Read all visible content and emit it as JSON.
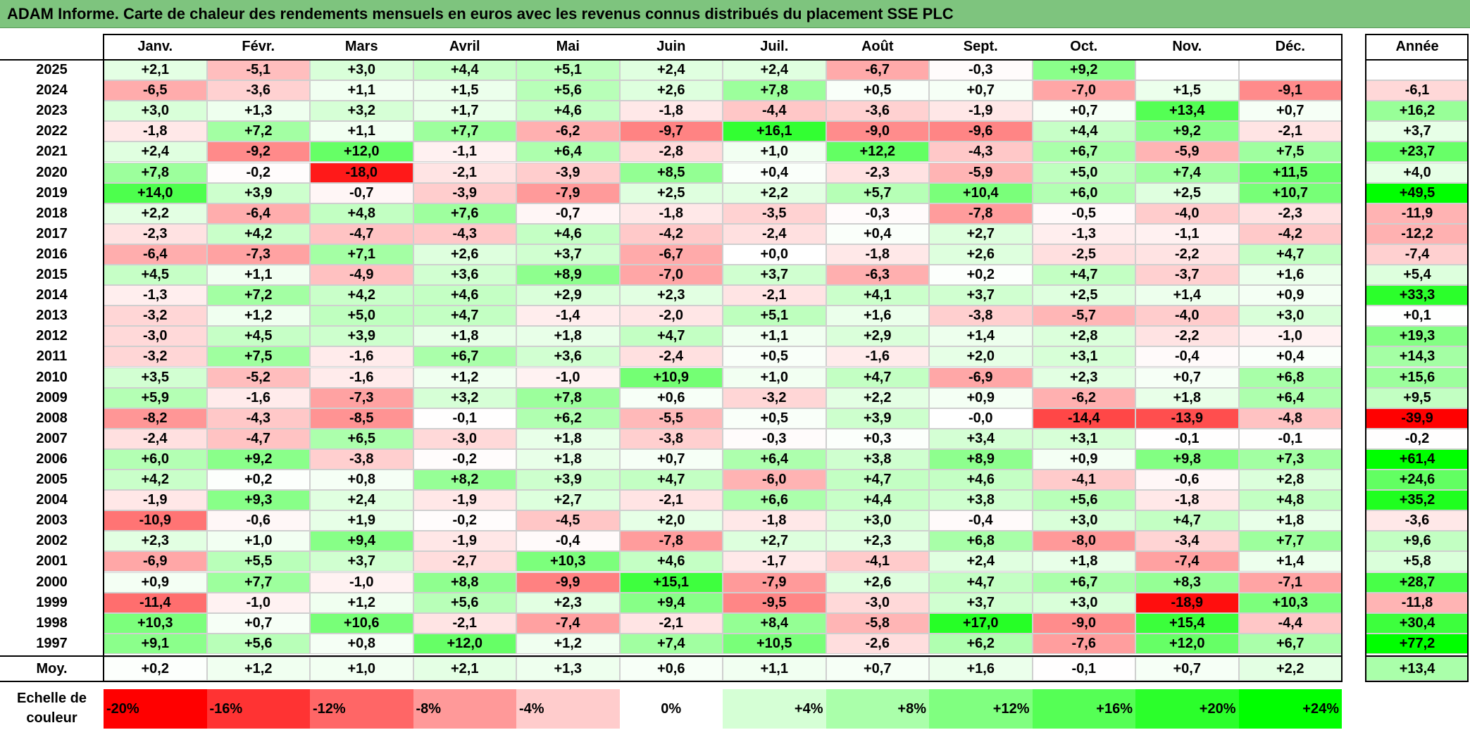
{
  "title": "ADAM Informe. Carte de chaleur des rendements mensuels en euros avec les revenus connus distribués du placement SSE PLC",
  "chart_data": {
    "type": "heatmap",
    "months": [
      "Janv.",
      "Févr.",
      "Mars",
      "Avril",
      "Mai",
      "Juin",
      "Juil.",
      "Août",
      "Sept.",
      "Oct.",
      "Nov.",
      "Déc."
    ],
    "year_header": "Année",
    "rows": [
      {
        "year": "2025",
        "values": [
          "+2,1",
          "-5,1",
          "+3,0",
          "+4,4",
          "+5,1",
          "+2,4",
          "+2,4",
          "-6,7",
          "-0,3",
          "+9,2",
          "",
          ""
        ],
        "annual": ""
      },
      {
        "year": "2024",
        "values": [
          "-6,5",
          "-3,6",
          "+1,1",
          "+1,5",
          "+5,6",
          "+2,6",
          "+7,8",
          "+0,5",
          "+0,7",
          "-7,0",
          "+1,5",
          "-9,1"
        ],
        "annual": "-6,1"
      },
      {
        "year": "2023",
        "values": [
          "+3,0",
          "+1,3",
          "+3,2",
          "+1,7",
          "+4,6",
          "-1,8",
          "-4,4",
          "-3,6",
          "-1,9",
          "+0,7",
          "+13,4",
          "+0,7"
        ],
        "annual": "+16,2"
      },
      {
        "year": "2022",
        "values": [
          "-1,8",
          "+7,2",
          "+1,1",
          "+7,7",
          "-6,2",
          "-9,7",
          "+16,1",
          "-9,0",
          "-9,6",
          "+4,4",
          "+9,2",
          "-2,1"
        ],
        "annual": "+3,7"
      },
      {
        "year": "2021",
        "values": [
          "+2,4",
          "-9,2",
          "+12,0",
          "-1,1",
          "+6,4",
          "-2,8",
          "+1,0",
          "+12,2",
          "-4,3",
          "+6,7",
          "-5,9",
          "+7,5"
        ],
        "annual": "+23,7"
      },
      {
        "year": "2020",
        "values": [
          "+7,8",
          "-0,2",
          "-18,0",
          "-2,1",
          "-3,9",
          "+8,5",
          "+0,4",
          "-2,3",
          "-5,9",
          "+5,0",
          "+7,4",
          "+11,5"
        ],
        "annual": "+4,0"
      },
      {
        "year": "2019",
        "values": [
          "+14,0",
          "+3,9",
          "-0,7",
          "-3,9",
          "-7,9",
          "+2,5",
          "+2,2",
          "+5,7",
          "+10,4",
          "+6,0",
          "+2,5",
          "+10,7"
        ],
        "annual": "+49,5"
      },
      {
        "year": "2018",
        "values": [
          "+2,2",
          "-6,4",
          "+4,8",
          "+7,6",
          "-0,7",
          "-1,8",
          "-3,5",
          "-0,3",
          "-7,8",
          "-0,5",
          "-4,0",
          "-2,3"
        ],
        "annual": "-11,9"
      },
      {
        "year": "2017",
        "values": [
          "-2,3",
          "+4,2",
          "-4,7",
          "-4,3",
          "+4,6",
          "-4,2",
          "-2,4",
          "+0,4",
          "+2,7",
          "-1,3",
          "-1,1",
          "-4,2"
        ],
        "annual": "-12,2"
      },
      {
        "year": "2016",
        "values": [
          "-6,4",
          "-7,3",
          "+7,1",
          "+2,6",
          "+3,7",
          "-6,7",
          "+0,0",
          "-1,8",
          "+2,6",
          "-2,5",
          "-2,2",
          "+4,7"
        ],
        "annual": "-7,4"
      },
      {
        "year": "2015",
        "values": [
          "+4,5",
          "+1,1",
          "-4,9",
          "+3,6",
          "+8,9",
          "-7,0",
          "+3,7",
          "-6,3",
          "+0,2",
          "+4,7",
          "-3,7",
          "+1,6"
        ],
        "annual": "+5,4"
      },
      {
        "year": "2014",
        "values": [
          "-1,3",
          "+7,2",
          "+4,2",
          "+4,6",
          "+2,9",
          "+2,3",
          "-2,1",
          "+4,1",
          "+3,7",
          "+2,5",
          "+1,4",
          "+0,9"
        ],
        "annual": "+33,3"
      },
      {
        "year": "2013",
        "values": [
          "-3,2",
          "+1,2",
          "+5,0",
          "+4,7",
          "-1,4",
          "-2,0",
          "+5,1",
          "+1,6",
          "-3,8",
          "-5,7",
          "-4,0",
          "+3,0"
        ],
        "annual": "+0,1"
      },
      {
        "year": "2012",
        "values": [
          "-3,0",
          "+4,5",
          "+3,9",
          "+1,8",
          "+1,8",
          "+4,7",
          "+1,1",
          "+2,9",
          "+1,4",
          "+2,8",
          "-2,2",
          "-1,0"
        ],
        "annual": "+19,3"
      },
      {
        "year": "2011",
        "values": [
          "-3,2",
          "+7,5",
          "-1,6",
          "+6,7",
          "+3,6",
          "-2,4",
          "+0,5",
          "-1,6",
          "+2,0",
          "+3,1",
          "-0,4",
          "+0,4"
        ],
        "annual": "+14,3"
      },
      {
        "year": "2010",
        "values": [
          "+3,5",
          "-5,2",
          "-1,6",
          "+1,2",
          "-1,0",
          "+10,9",
          "+1,0",
          "+4,7",
          "-6,9",
          "+2,3",
          "+0,7",
          "+6,8"
        ],
        "annual": "+15,6"
      },
      {
        "year": "2009",
        "values": [
          "+5,9",
          "-1,6",
          "-7,3",
          "+3,2",
          "+7,8",
          "+0,6",
          "-3,2",
          "+2,2",
          "+0,9",
          "-6,2",
          "+1,8",
          "+6,4"
        ],
        "annual": "+9,5"
      },
      {
        "year": "2008",
        "values": [
          "-8,2",
          "-4,3",
          "-8,5",
          "-0,1",
          "+6,2",
          "-5,5",
          "+0,5",
          "+3,9",
          "-0,0",
          "-14,4",
          "-13,9",
          "-4,8"
        ],
        "annual": "-39,9"
      },
      {
        "year": "2007",
        "values": [
          "-2,4",
          "-4,7",
          "+6,5",
          "-3,0",
          "+1,8",
          "-3,8",
          "-0,3",
          "+0,3",
          "+3,4",
          "+3,1",
          "-0,1",
          "-0,1"
        ],
        "annual": "-0,2"
      },
      {
        "year": "2006",
        "values": [
          "+6,0",
          "+9,2",
          "-3,8",
          "-0,2",
          "+1,8",
          "+0,7",
          "+6,4",
          "+3,8",
          "+8,9",
          "+0,9",
          "+9,8",
          "+7,3"
        ],
        "annual": "+61,4"
      },
      {
        "year": "2005",
        "values": [
          "+4,2",
          "+0,2",
          "+0,8",
          "+8,2",
          "+3,9",
          "+4,7",
          "-6,0",
          "+4,7",
          "+4,6",
          "-4,1",
          "-0,6",
          "+2,8"
        ],
        "annual": "+24,6"
      },
      {
        "year": "2004",
        "values": [
          "-1,9",
          "+9,3",
          "+2,4",
          "-1,9",
          "+2,7",
          "-2,1",
          "+6,6",
          "+4,4",
          "+3,8",
          "+5,6",
          "-1,8",
          "+4,8"
        ],
        "annual": "+35,2"
      },
      {
        "year": "2003",
        "values": [
          "-10,9",
          "-0,6",
          "+1,9",
          "-0,2",
          "-4,5",
          "+2,0",
          "-1,8",
          "+3,0",
          "-0,4",
          "+3,0",
          "+4,7",
          "+1,8"
        ],
        "annual": "-3,6"
      },
      {
        "year": "2002",
        "values": [
          "+2,3",
          "+1,0",
          "+9,4",
          "-1,9",
          "-0,4",
          "-7,8",
          "+2,7",
          "+2,3",
          "+6,8",
          "-8,0",
          "-3,4",
          "+7,7"
        ],
        "annual": "+9,6"
      },
      {
        "year": "2001",
        "values": [
          "-6,9",
          "+5,5",
          "+3,7",
          "-2,7",
          "+10,3",
          "+4,6",
          "-1,7",
          "-4,1",
          "+2,4",
          "+1,8",
          "-7,4",
          "+1,4"
        ],
        "annual": "+5,8"
      },
      {
        "year": "2000",
        "values": [
          "+0,9",
          "+7,7",
          "-1,0",
          "+8,8",
          "-9,9",
          "+15,1",
          "-7,9",
          "+2,6",
          "+4,7",
          "+6,7",
          "+8,3",
          "-7,1"
        ],
        "annual": "+28,7"
      },
      {
        "year": "1999",
        "values": [
          "-11,4",
          "-1,0",
          "+1,2",
          "+5,6",
          "+2,3",
          "+9,4",
          "-9,5",
          "-3,0",
          "+3,7",
          "+3,0",
          "-18,9",
          "+10,3"
        ],
        "annual": "-11,8"
      },
      {
        "year": "1998",
        "values": [
          "+10,3",
          "+0,7",
          "+10,6",
          "-2,1",
          "-7,4",
          "-2,1",
          "+8,4",
          "-5,8",
          "+17,0",
          "-9,0",
          "+15,4",
          "-4,4"
        ],
        "annual": "+30,4"
      },
      {
        "year": "1997",
        "values": [
          "+9,1",
          "+5,6",
          "+0,8",
          "+12,0",
          "+1,2",
          "+7,4",
          "+10,5",
          "-2,6",
          "+6,2",
          "-7,6",
          "+12,0",
          "+6,7"
        ],
        "annual": "+77,2"
      }
    ],
    "average": {
      "label": "Moy.",
      "values": [
        "+0,2",
        "+1,2",
        "+1,0",
        "+2,1",
        "+1,3",
        "+0,6",
        "+1,1",
        "+0,7",
        "+1,6",
        "-0,1",
        "+0,7",
        "+2,2"
      ],
      "annual": "+13,4"
    },
    "legend": {
      "title_line1": "Echelle de",
      "title_line2": "couleur",
      "items": [
        {
          "label": "-20%",
          "value": -20,
          "color": "#ff0000"
        },
        {
          "label": "-16%",
          "value": -16,
          "color": "#ff3333"
        },
        {
          "label": "-12%",
          "value": -12,
          "color": "#ff6666"
        },
        {
          "label": "-8%",
          "value": -8,
          "color": "#ff9999"
        },
        {
          "label": "-4%",
          "value": -4,
          "color": "#ffcccc"
        },
        {
          "label": "0%",
          "value": 0,
          "color": "#ffffff"
        },
        {
          "label": "+4%",
          "value": 4,
          "color": "#d5ffd5"
        },
        {
          "label": "+8%",
          "value": 8,
          "color": "#aaffaa"
        },
        {
          "label": "+12%",
          "value": 12,
          "color": "#80ff80"
        },
        {
          "label": "+16%",
          "value": 16,
          "color": "#55ff55"
        },
        {
          "label": "+20%",
          "value": 20,
          "color": "#2bff2b"
        },
        {
          "label": "+24%",
          "value": 24,
          "color": "#00ff00"
        }
      ]
    },
    "colors": {
      "negative_max": "#ff0000",
      "neutral": "#ffffff",
      "positive_max": "#00ff00",
      "title_bar": "#7ec47e"
    }
  }
}
